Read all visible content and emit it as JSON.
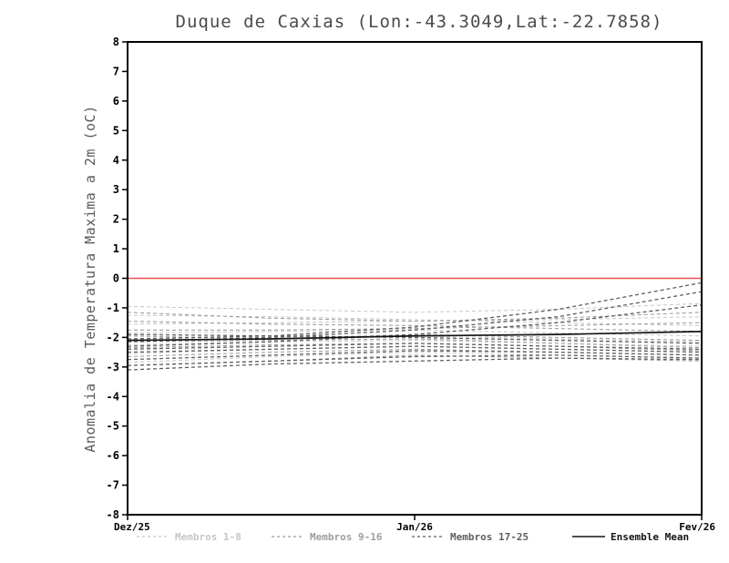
{
  "chart_data": {
    "type": "line",
    "title": "Duque de Caxias (Lon:-43.3049,Lat:-22.7858)",
    "ylabel": "Anomalia de Temperatura Maxima a 2m (oC)",
    "xlabel": "",
    "ylim": [
      -8,
      8
    ],
    "ytick_interval": 1,
    "xlim": [
      0,
      2
    ],
    "x": [
      0,
      0.5,
      1,
      1.5,
      2
    ],
    "xticks": [
      {
        "value": 0,
        "label": "Dez/25"
      },
      {
        "value": 1,
        "label": "Jan/26"
      },
      {
        "value": 2,
        "label": "Fev/26"
      }
    ],
    "grid": false,
    "legend_position": "bottom",
    "zero_line": {
      "y": 0,
      "color": "#e8534e"
    },
    "groups": [
      {
        "name": "Membros 1-8",
        "color": "#c6c6c6",
        "style": "dashed",
        "members": [
          [
            -0.95,
            -1.05,
            -1.15,
            -1.05,
            -0.85
          ],
          [
            -1.25,
            -1.3,
            -1.4,
            -1.5,
            -1.6
          ],
          [
            -1.55,
            -1.5,
            -1.45,
            -1.4,
            -1.3
          ],
          [
            -1.85,
            -1.8,
            -1.75,
            -1.85,
            -1.95
          ],
          [
            -2.05,
            -2.0,
            -1.95,
            -2.05,
            -2.15
          ],
          [
            -2.25,
            -2.15,
            -2.1,
            -2.2,
            -2.3
          ],
          [
            -2.55,
            -2.4,
            -2.3,
            -2.4,
            -2.5
          ],
          [
            -2.85,
            -2.65,
            -2.5,
            -2.6,
            -2.7
          ]
        ]
      },
      {
        "name": "Membros 9-16",
        "color": "#9e9e9e",
        "style": "dashed",
        "members": [
          [
            -1.15,
            -1.35,
            -1.45,
            -1.35,
            -1.15
          ],
          [
            -1.45,
            -1.55,
            -1.6,
            -1.7,
            -1.8
          ],
          [
            -1.75,
            -1.75,
            -1.7,
            -1.6,
            -1.5
          ],
          [
            -1.95,
            -2.05,
            -1.9,
            -2.0,
            -2.1
          ],
          [
            -2.15,
            -2.1,
            -2.05,
            -2.2,
            -2.35
          ],
          [
            -2.35,
            -2.25,
            -2.2,
            -2.3,
            -2.45
          ],
          [
            -2.65,
            -2.5,
            -2.4,
            -2.5,
            -2.6
          ],
          [
            -2.95,
            -2.8,
            -2.6,
            -2.7,
            -2.8
          ]
        ]
      },
      {
        "name": "Membros 17-25",
        "color": "#5f5f5f",
        "style": "dashed",
        "members": [
          [
            -2.05,
            -1.95,
            -1.65,
            -1.05,
            -0.15
          ],
          [
            -2.15,
            -2.0,
            -1.75,
            -1.3,
            -0.45
          ],
          [
            -2.3,
            -2.15,
            -1.9,
            -1.5,
            -0.9
          ],
          [
            -2.4,
            -2.3,
            -2.2,
            -2.3,
            -2.4
          ],
          [
            -2.5,
            -2.4,
            -2.3,
            -2.4,
            -2.5
          ],
          [
            -2.75,
            -2.6,
            -2.45,
            -2.5,
            -2.6
          ],
          [
            -2.95,
            -2.8,
            -2.65,
            -2.6,
            -2.7
          ],
          [
            -3.1,
            -2.9,
            -2.8,
            -2.7,
            -2.75
          ],
          [
            -1.9,
            -1.95,
            -2.0,
            -2.1,
            -2.2
          ]
        ]
      }
    ],
    "mean": {
      "name": "Ensemble Mean",
      "color": "#141414",
      "style": "solid",
      "values": [
        -2.1,
        -2.05,
        -1.95,
        -1.9,
        -1.8
      ]
    }
  }
}
